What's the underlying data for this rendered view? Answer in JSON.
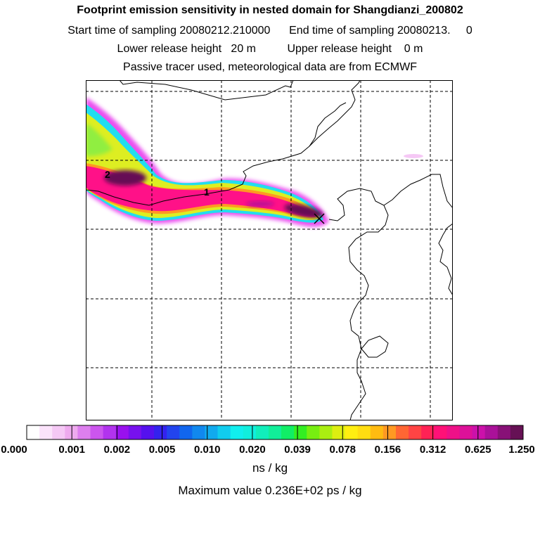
{
  "title": "Footprint emission sensitivity in nested domain for Shangdianzi_200802",
  "subtitle_time": "Start time of sampling 20080212.210000      End time of sampling 20080213.     0",
  "subtitle_height": "Lower release height   20 m          Upper release height    0 m",
  "subtitle_tracer": "Passive tracer used, meteorological data are from ECMWF",
  "map": {
    "release_site_marker": "x-icon",
    "day_markers": [
      "1",
      "2"
    ],
    "gridlines": "dashed",
    "coastline_color": "#000000"
  },
  "colorbar": {
    "labels": [
      "0.000",
      "0.001",
      "0.002",
      "0.005",
      "0.010",
      "0.020",
      "0.039",
      "0.078",
      "0.156",
      "0.312",
      "0.625",
      "1.250"
    ],
    "colors": [
      "#ffffff",
      "#fbe3fb",
      "#f5c8f5",
      "#eeaaee",
      "#dd7fee",
      "#cc55ee",
      "#b233ee",
      "#9911ee",
      "#7711ee",
      "#5511ee",
      "#3322ee",
      "#2244ee",
      "#1166ee",
      "#1188ee",
      "#11aaee",
      "#11ccee",
      "#11eeee",
      "#11eedd",
      "#11eebb",
      "#11ee99",
      "#11ee66",
      "#33ee22",
      "#77ee11",
      "#aaee11",
      "#ddee11",
      "#ffee11",
      "#ffdd11",
      "#ffbb11",
      "#ff9922",
      "#ff6633",
      "#ff4444",
      "#ff2255",
      "#ff1177",
      "#ee1188",
      "#dd1199",
      "#cc11aa",
      "#aa1199",
      "#881177",
      "#661155"
    ]
  },
  "unit_label": "ns / kg",
  "maximum_value": "Maximum value  0.236E+02 ps / kg"
}
